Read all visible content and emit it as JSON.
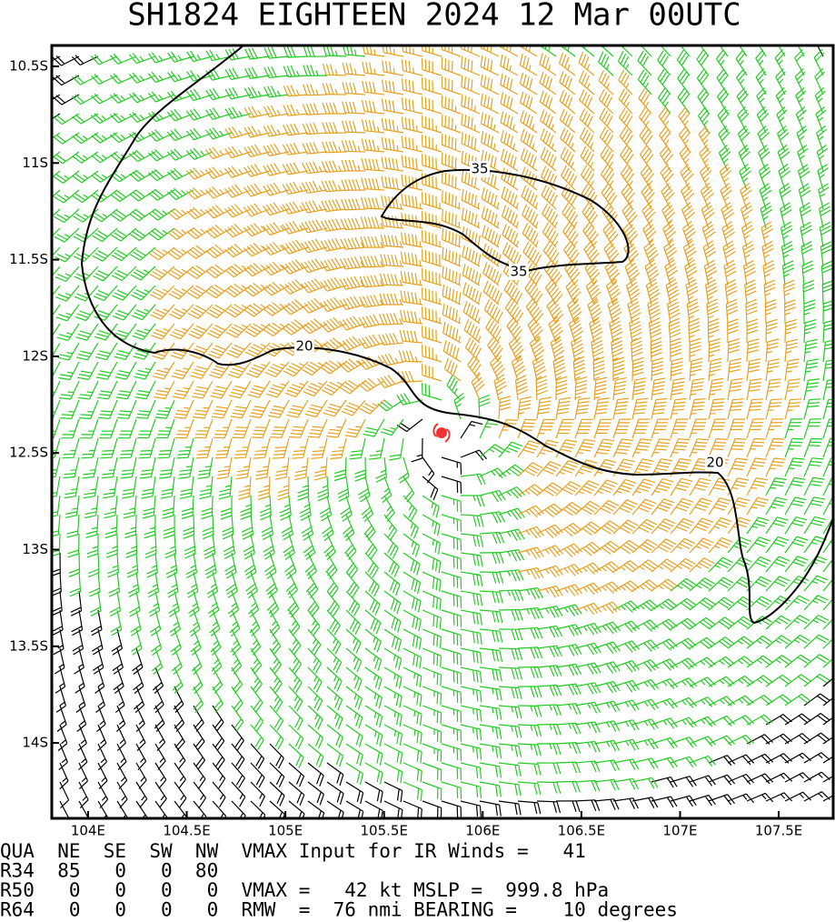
{
  "title": "SH1824    EIGHTEEN 2024 12 Mar 00UTC",
  "map": {
    "xlim": [
      103.816,
      107.776
    ],
    "ylim": [
      -10.392,
      -14.39
    ],
    "xticks": [
      {
        "value": 104,
        "label": "104E"
      },
      {
        "value": 104.5,
        "label": "104.5E"
      },
      {
        "value": 105,
        "label": "105E"
      },
      {
        "value": 105.5,
        "label": "105.5E"
      },
      {
        "value": 106,
        "label": "106E"
      },
      {
        "value": 106.5,
        "label": "106.5E"
      },
      {
        "value": 107,
        "label": "107E"
      },
      {
        "value": 107.5,
        "label": "107.5E"
      }
    ],
    "yticks": [
      {
        "value": -10.5,
        "label": "10.5S"
      },
      {
        "value": -11,
        "label": "11S"
      },
      {
        "value": -11.5,
        "label": "11.5S"
      },
      {
        "value": -12,
        "label": "12S"
      },
      {
        "value": -12.5,
        "label": "12.5S"
      },
      {
        "value": -13,
        "label": "13S"
      },
      {
        "value": -13.5,
        "label": "13.5S"
      },
      {
        "value": -14,
        "label": "14S"
      }
    ],
    "contour_labels": [
      "35",
      "35",
      "20",
      "20"
    ]
  },
  "footer": {
    "lines": [
      "QUA  NE  SE  SW  NW  VMAX Input for IR Winds =   41",
      "R34  85   0   0  80",
      "R50   0   0   0   0  VMAX =   42 kt MSLP =  999.8 hPa",
      "R64   0   0   0   0  RMW  =  76 nmi BEARING =    10 degrees"
    ]
  }
}
